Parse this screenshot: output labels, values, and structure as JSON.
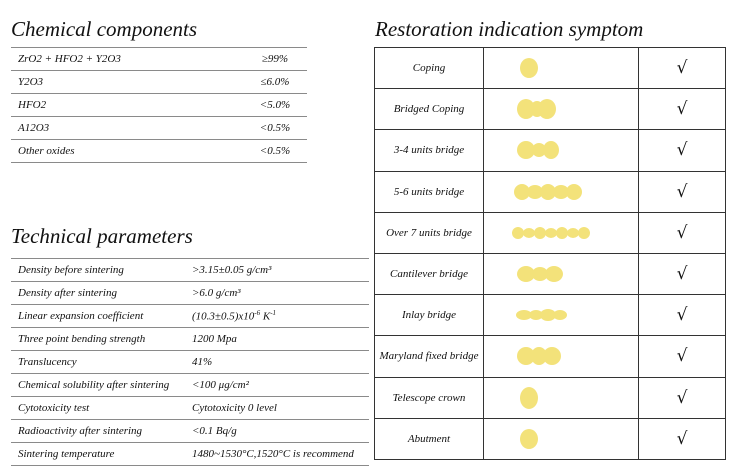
{
  "chemical": {
    "title": "Chemical components",
    "rows": [
      {
        "name": "ZrO2 + HFO2 + Y2O3",
        "value": "≥99%"
      },
      {
        "name": "Y2O3",
        "value": "≤6.0%"
      },
      {
        "name": "HFO2",
        "value": "<5.0%"
      },
      {
        "name": "A12O3",
        "value": "<0.5%"
      },
      {
        "name": "Other oxides",
        "value": "<0.5%"
      }
    ]
  },
  "technical": {
    "title": "Technical parameters",
    "rows": [
      {
        "name": "Density before sintering",
        "value": ">3.15±0.05 g/cm³"
      },
      {
        "name": "Density after sintering",
        "value": ">6.0 g/cm³"
      },
      {
        "name": "Linear expansion coefficient",
        "value": "(10.3±0.5)x10",
        "exp": "-6",
        "unit": " K",
        "unit_exp": "-1"
      },
      {
        "name": "Three point bending strength",
        "value": "1200  Mpa"
      },
      {
        "name": "Translucency",
        "value": "41%"
      },
      {
        "name": "Chemical solubility after sintering",
        "value": "<100 μg/cm²"
      },
      {
        "name": "Cytotoxicity test",
        "value": "Cytotoxicity 0 level"
      },
      {
        "name": "Radioactivity after sintering",
        "value": "<0.1 Bq/g"
      },
      {
        "name": "Sintering temperature",
        "value": "1480~1530°C,1520°C is recommend"
      }
    ]
  },
  "restoration": {
    "title": "Restoration indication symptom",
    "shape_color": "#f3e27a",
    "check": "√",
    "rows": [
      {
        "name": "Coping",
        "shape": "coping"
      },
      {
        "name": "Bridged Coping",
        "shape": "bridged-coping"
      },
      {
        "name": "3-4 units bridge",
        "shape": "three-four-unit"
      },
      {
        "name": "5-6 units bridge",
        "shape": "five-six-unit"
      },
      {
        "name": "Over 7 units bridge",
        "shape": "seven-plus-unit"
      },
      {
        "name": "Cantilever bridge",
        "shape": "cantilever"
      },
      {
        "name": "Inlay bridge",
        "shape": "inlay"
      },
      {
        "name": "Maryland fixed bridge",
        "shape": "maryland"
      },
      {
        "name": "Telescope crown",
        "shape": "telescope"
      },
      {
        "name": "Abutment",
        "shape": "abutment"
      }
    ]
  }
}
